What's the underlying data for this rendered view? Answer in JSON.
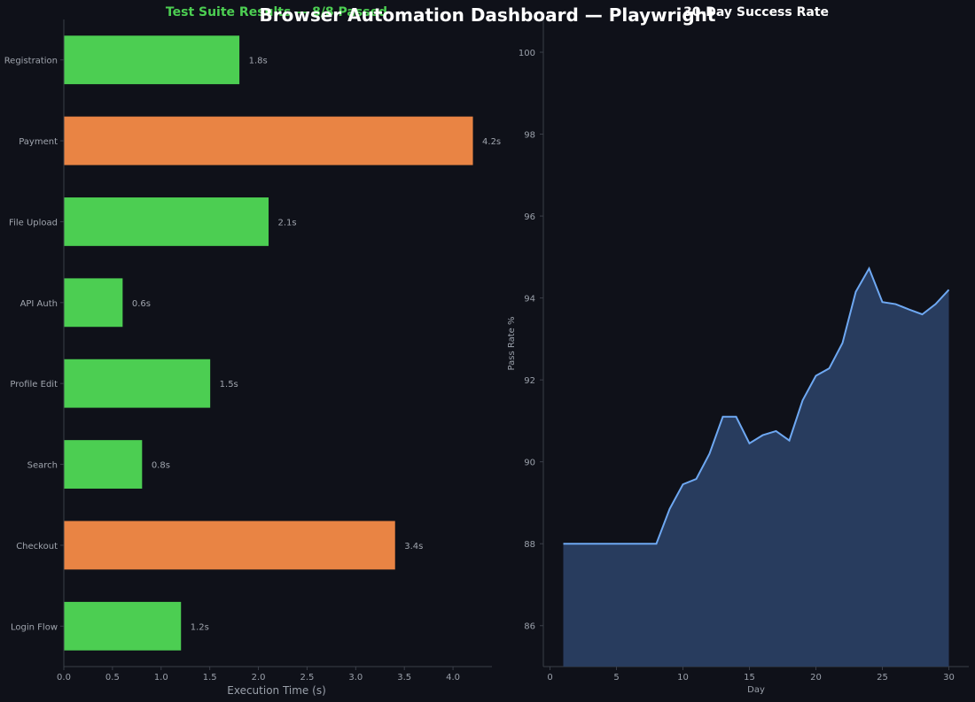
{
  "title": "Browser Automation Dashboard — Playwright",
  "colors": {
    "pass": "#4cce52",
    "slow": "#e98444",
    "line": "#6ea8f2",
    "fill": "#283c5e",
    "axis": "#3a3e48"
  },
  "chart_data": [
    {
      "type": "bar",
      "orientation": "horizontal",
      "title": "Test Suite Results — 8/8 Passed",
      "title_color": "#4cce52",
      "xlabel": "Execution Time (s)",
      "ylabel": "",
      "xlim": [
        0,
        4.4
      ],
      "xticks": [
        0.0,
        0.5,
        1.0,
        1.5,
        2.0,
        2.5,
        3.0,
        3.5,
        4.0
      ],
      "xtick_labels": [
        "0.0",
        "0.5",
        "1.0",
        "1.5",
        "2.0",
        "2.5",
        "3.0",
        "3.5",
        "4.0"
      ],
      "categories": [
        "Login Flow",
        "Checkout",
        "Search",
        "Profile Edit",
        "API Auth",
        "File Upload",
        "Payment",
        "Registration"
      ],
      "values": [
        1.2,
        3.4,
        0.8,
        1.5,
        0.6,
        2.1,
        4.2,
        1.8
      ],
      "value_labels": [
        "1.2s",
        "3.4s",
        "0.8s",
        "1.5s",
        "0.6s",
        "2.1s",
        "4.2s",
        "1.8s"
      ],
      "bar_colors": [
        "#4cce52",
        "#e98444",
        "#4cce52",
        "#4cce52",
        "#4cce52",
        "#4cce52",
        "#e98444",
        "#4cce52"
      ],
      "grid": false
    },
    {
      "type": "area",
      "title": "30-Day Success Rate",
      "xlabel": "Day",
      "ylabel": "Pass Rate %",
      "xlim": [
        -0.5,
        31.5
      ],
      "ylim": [
        85,
        100.8
      ],
      "xticks": [
        0,
        5,
        10,
        15,
        20,
        25,
        30
      ],
      "yticks": [
        86,
        88,
        90,
        92,
        94,
        96,
        98,
        100
      ],
      "x": [
        1,
        2,
        3,
        4,
        5,
        6,
        7,
        8,
        9,
        10,
        11,
        12,
        13,
        14,
        15,
        16,
        17,
        18,
        19,
        20,
        21,
        22,
        23,
        24,
        25,
        26,
        27,
        28,
        29,
        30
      ],
      "y": [
        88.0,
        88.0,
        88.0,
        88.0,
        88.0,
        88.0,
        88.0,
        88.0,
        88.85,
        89.45,
        89.58,
        90.2,
        91.1,
        91.1,
        90.45,
        90.65,
        90.75,
        90.52,
        91.5,
        92.1,
        92.28,
        92.9,
        94.15,
        94.72,
        93.9,
        93.85,
        93.72,
        93.6,
        93.85,
        94.2
      ],
      "grid": false
    }
  ]
}
